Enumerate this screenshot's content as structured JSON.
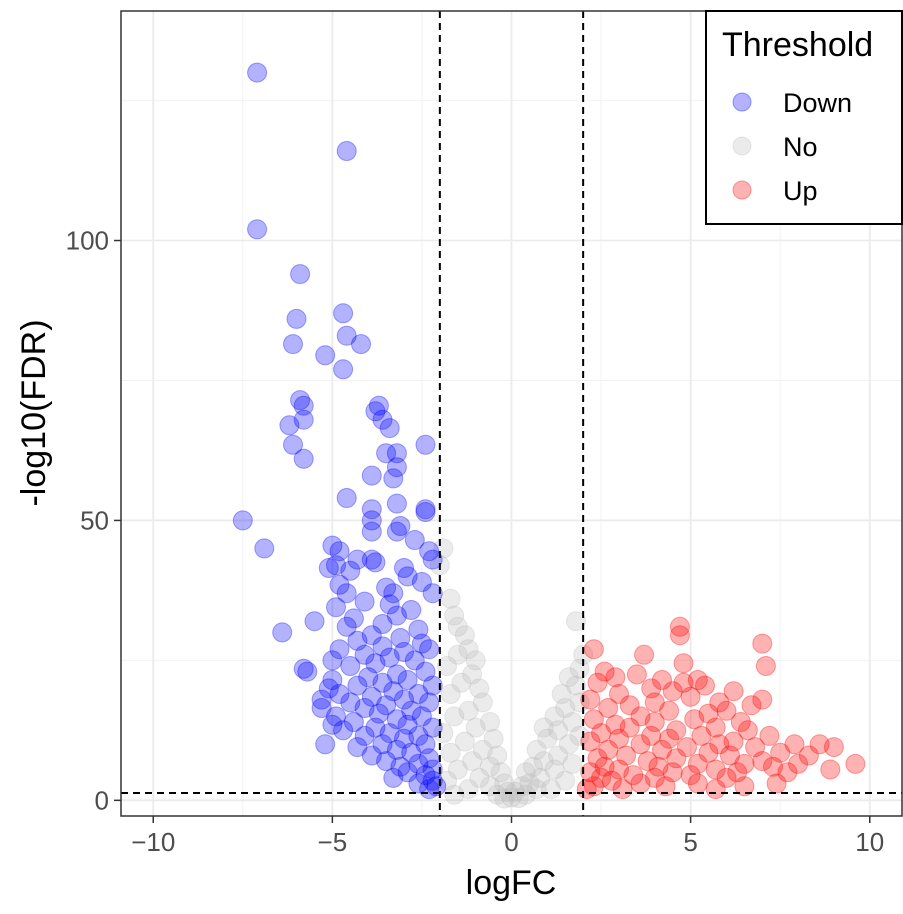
{
  "chart_data": {
    "type": "scatter",
    "title": "",
    "xlabel": "logFC",
    "ylabel": "-log10(FDR)",
    "xlim": [
      -10.9,
      10.9
    ],
    "ylim": [
      -2.8,
      141
    ],
    "x_ticks": [
      -10,
      -5,
      0,
      5,
      10
    ],
    "x_tick_labels": [
      "−10",
      "−5",
      "0",
      "5",
      "10"
    ],
    "y_ticks": [
      0,
      50,
      100
    ],
    "y_tick_labels": [
      "0",
      "50",
      "100"
    ],
    "thresholds": {
      "logFC_low": -2,
      "logFC_high": 2,
      "neg_log10_fdr": 1.3
    },
    "grid": true,
    "legend": {
      "title": "Threshold",
      "position": "top-right",
      "entries": [
        "Down",
        "No",
        "Up"
      ]
    },
    "colors": {
      "Down": "#0000ff",
      "No": "#bebebe",
      "Up": "#ff0000"
    },
    "series": [
      {
        "name": "Down",
        "points": [
          [
            -7.1,
            130
          ],
          [
            -4.6,
            116
          ],
          [
            -7.1,
            102
          ],
          [
            -5.9,
            94
          ],
          [
            -4.7,
            87
          ],
          [
            -6.0,
            86
          ],
          [
            -4.6,
            83
          ],
          [
            -6.1,
            81.5
          ],
          [
            -4.2,
            81.5
          ],
          [
            -5.2,
            79.5
          ],
          [
            -4.7,
            77
          ],
          [
            -5.9,
            71.5
          ],
          [
            -5.8,
            70.5
          ],
          [
            -3.7,
            70.5
          ],
          [
            -3.8,
            69.5
          ],
          [
            -5.8,
            68
          ],
          [
            -3.6,
            68
          ],
          [
            -6.2,
            67
          ],
          [
            -3.4,
            66.5
          ],
          [
            -6.1,
            63.5
          ],
          [
            -2.4,
            63.5
          ],
          [
            -5.8,
            61
          ],
          [
            -3.5,
            62
          ],
          [
            -3.2,
            62
          ],
          [
            -3.2,
            59.5
          ],
          [
            -3.9,
            58
          ],
          [
            -3.3,
            57.5
          ],
          [
            -4.6,
            54
          ],
          [
            -3.2,
            53
          ],
          [
            -3.9,
            52
          ],
          [
            -2.4,
            52
          ],
          [
            -2.4,
            51.5
          ],
          [
            -3.9,
            50
          ],
          [
            -7.5,
            50
          ],
          [
            -3.1,
            49
          ],
          [
            -3.2,
            48
          ],
          [
            -3.9,
            48
          ],
          [
            -2.7,
            46.5
          ],
          [
            -6.9,
            45
          ],
          [
            -5.0,
            45.5
          ],
          [
            -4.8,
            44.5
          ],
          [
            -2.3,
            44.5
          ],
          [
            -4.3,
            43
          ],
          [
            -3.9,
            43
          ],
          [
            -3.8,
            42.5
          ],
          [
            -2.2,
            43
          ],
          [
            -5.1,
            41.5
          ],
          [
            -4.9,
            42
          ],
          [
            -4.5,
            41
          ],
          [
            -3.0,
            41.5
          ],
          [
            -2.9,
            40
          ],
          [
            -2.5,
            39
          ],
          [
            -4.8,
            38.5
          ],
          [
            -3.5,
            38
          ],
          [
            -4.6,
            37
          ],
          [
            -3.3,
            37
          ],
          [
            -2.2,
            37
          ],
          [
            -4.1,
            35.5
          ],
          [
            -3.4,
            35
          ],
          [
            -4.9,
            34.5
          ],
          [
            -2.8,
            34
          ],
          [
            -3.2,
            33
          ],
          [
            -4.4,
            32.5
          ],
          [
            -5.5,
            32
          ],
          [
            -3.6,
            31.5
          ],
          [
            -4.6,
            31
          ],
          [
            -2.6,
            30.5
          ],
          [
            -6.4,
            30
          ],
          [
            -3.9,
            29.5
          ],
          [
            -3.1,
            29
          ],
          [
            -4.3,
            28.5
          ],
          [
            -2.5,
            28
          ],
          [
            -3.6,
            27.5
          ],
          [
            -4.8,
            27
          ],
          [
            -2.3,
            27
          ],
          [
            -3.0,
            26.5
          ],
          [
            -4.1,
            26
          ],
          [
            -3.4,
            25.5
          ],
          [
            -5.0,
            25
          ],
          [
            -2.7,
            25
          ],
          [
            -3.8,
            24.5
          ],
          [
            -4.5,
            24
          ],
          [
            -5.8,
            23.5
          ],
          [
            -5.7,
            23
          ],
          [
            -2.4,
            23
          ],
          [
            -3.2,
            22.5
          ],
          [
            -4.0,
            22
          ],
          [
            -5.0,
            21.5
          ],
          [
            -2.9,
            21.5
          ],
          [
            -3.6,
            21
          ],
          [
            -4.3,
            20.5
          ],
          [
            -2.2,
            20.5
          ],
          [
            -5.1,
            20
          ],
          [
            -3.3,
            19.5
          ],
          [
            -4.8,
            19
          ],
          [
            -2.6,
            19
          ],
          [
            -3.9,
            18.5
          ],
          [
            -5.3,
            18
          ],
          [
            -3.0,
            18
          ],
          [
            -4.5,
            17.5
          ],
          [
            -2.3,
            17.5
          ],
          [
            -3.5,
            17
          ],
          [
            -5.3,
            16.5
          ],
          [
            -4.1,
            16.5
          ],
          [
            -2.8,
            16
          ],
          [
            -3.7,
            15.5
          ],
          [
            -4.9,
            15
          ],
          [
            -2.5,
            15
          ],
          [
            -3.2,
            14.5
          ],
          [
            -4.4,
            14
          ],
          [
            -5.0,
            13.5
          ],
          [
            -2.9,
            13.5
          ],
          [
            -3.8,
            13
          ],
          [
            -2.2,
            13
          ],
          [
            -4.7,
            12.5
          ],
          [
            -3.4,
            12
          ],
          [
            -2.6,
            11.5
          ],
          [
            -4.1,
            11.5
          ],
          [
            -3.0,
            11
          ],
          [
            -5.2,
            10
          ],
          [
            -3.6,
            10
          ],
          [
            -2.4,
            10
          ],
          [
            -4.3,
            9.5
          ],
          [
            -3.2,
            9
          ],
          [
            -2.8,
            8.5
          ],
          [
            -3.9,
            8
          ],
          [
            -2.3,
            7.5
          ],
          [
            -3.5,
            7
          ],
          [
            -2.6,
            6.5
          ],
          [
            -3.1,
            6
          ],
          [
            -2.2,
            5.5
          ],
          [
            -2.9,
            5
          ],
          [
            -2.4,
            4.5
          ],
          [
            -3.3,
            4
          ],
          [
            -2.2,
            3.5
          ],
          [
            -2.6,
            3
          ],
          [
            -2.1,
            2.5
          ],
          [
            -2.3,
            2
          ]
        ]
      },
      {
        "name": "No",
        "points": [
          [
            -1.9,
            45
          ],
          [
            -2.0,
            42
          ],
          [
            -1.7,
            36
          ],
          [
            -1.6,
            33
          ],
          [
            -1.5,
            31
          ],
          [
            -1.3,
            29.5
          ],
          [
            -1.2,
            27
          ],
          [
            -1.0,
            25
          ],
          [
            -1.5,
            26
          ],
          [
            -1.8,
            24
          ],
          [
            -1.1,
            22.5
          ],
          [
            -0.9,
            20
          ],
          [
            -1.4,
            21
          ],
          [
            -1.7,
            19
          ],
          [
            -0.8,
            17.5
          ],
          [
            -1.2,
            16
          ],
          [
            -1.6,
            15
          ],
          [
            -0.6,
            14
          ],
          [
            -1.0,
            13
          ],
          [
            -1.9,
            12
          ],
          [
            -0.5,
            11
          ],
          [
            -1.3,
            10.5
          ],
          [
            -0.8,
            9
          ],
          [
            -1.7,
            8.5
          ],
          [
            -0.4,
            8
          ],
          [
            -1.1,
            7
          ],
          [
            -0.6,
            6
          ],
          [
            -1.5,
            5.5
          ],
          [
            -0.3,
            5
          ],
          [
            -0.9,
            4
          ],
          [
            -1.8,
            3.5
          ],
          [
            -0.2,
            3
          ],
          [
            -0.6,
            2.5
          ],
          [
            -1.2,
            2
          ],
          [
            -0.1,
            1.5
          ],
          [
            -0.4,
            1
          ],
          [
            -1.6,
            1
          ],
          [
            0.0,
            0.5
          ],
          [
            -0.2,
            0.3
          ],
          [
            0.2,
            0.4
          ],
          [
            0.4,
            1
          ],
          [
            0.1,
            1.5
          ],
          [
            0.7,
            2
          ],
          [
            0.3,
            2.5
          ],
          [
            1.1,
            2
          ],
          [
            0.5,
            3
          ],
          [
            1.5,
            3.5
          ],
          [
            0.8,
            4
          ],
          [
            0.4,
            5
          ],
          [
            1.2,
            5.5
          ],
          [
            0.6,
            6
          ],
          [
            1.7,
            6.5
          ],
          [
            0.9,
            7
          ],
          [
            1.3,
            8
          ],
          [
            0.7,
            9
          ],
          [
            1.6,
            10
          ],
          [
            1.0,
            11
          ],
          [
            1.9,
            11.5
          ],
          [
            1.3,
            12.5
          ],
          [
            0.9,
            13
          ],
          [
            1.7,
            14
          ],
          [
            1.2,
            15
          ],
          [
            1.5,
            16.5
          ],
          [
            1.9,
            17.5
          ],
          [
            1.4,
            19
          ],
          [
            1.8,
            20.5
          ],
          [
            1.6,
            22
          ],
          [
            1.9,
            23.5
          ],
          [
            2.0,
            26
          ],
          [
            1.8,
            32
          ]
        ]
      },
      {
        "name": "Up",
        "points": [
          [
            4.7,
            31
          ],
          [
            4.7,
            29.5
          ],
          [
            7.0,
            28
          ],
          [
            2.3,
            27
          ],
          [
            3.7,
            26
          ],
          [
            4.8,
            24.5
          ],
          [
            7.1,
            24
          ],
          [
            2.6,
            23
          ],
          [
            3.5,
            22.5
          ],
          [
            2.9,
            22
          ],
          [
            4.2,
            21.5
          ],
          [
            5.2,
            21.5
          ],
          [
            4.8,
            21
          ],
          [
            2.4,
            21
          ],
          [
            5.4,
            20.5
          ],
          [
            3.9,
            20
          ],
          [
            4.5,
            19.5
          ],
          [
            6.2,
            19.5
          ],
          [
            3.0,
            19
          ],
          [
            5.0,
            18.5
          ],
          [
            7.0,
            18
          ],
          [
            2.2,
            18
          ],
          [
            4.0,
            17.5
          ],
          [
            5.8,
            17.5
          ],
          [
            3.3,
            17
          ],
          [
            6.7,
            17
          ],
          [
            2.7,
            16.5
          ],
          [
            4.4,
            16
          ],
          [
            5.5,
            15.5
          ],
          [
            6.0,
            16
          ],
          [
            3.6,
            15
          ],
          [
            2.3,
            14.5
          ],
          [
            5.1,
            14.5
          ],
          [
            6.4,
            14
          ],
          [
            4.0,
            14
          ],
          [
            2.9,
            13.5
          ],
          [
            3.3,
            13
          ],
          [
            5.7,
            13
          ],
          [
            4.6,
            12.5
          ],
          [
            6.6,
            12.5
          ],
          [
            2.5,
            12
          ],
          [
            3.9,
            11.5
          ],
          [
            5.3,
            11.5
          ],
          [
            7.2,
            11.5
          ],
          [
            3.0,
            11
          ],
          [
            4.4,
            11
          ],
          [
            6.2,
            10.5
          ],
          [
            2.2,
            10.5
          ],
          [
            5.8,
            10
          ],
          [
            7.9,
            10
          ],
          [
            8.6,
            10
          ],
          [
            9.0,
            9.5
          ],
          [
            3.6,
            10
          ],
          [
            4.9,
            9.5
          ],
          [
            6.8,
            9.5
          ],
          [
            2.7,
            9
          ],
          [
            4.2,
            9
          ],
          [
            5.5,
            8.5
          ],
          [
            7.5,
            8.5
          ],
          [
            8.3,
            8
          ],
          [
            3.2,
            8
          ],
          [
            6.1,
            8
          ],
          [
            2.4,
            7.5
          ],
          [
            4.6,
            7.5
          ],
          [
            7.0,
            7
          ],
          [
            9.6,
            6.5
          ],
          [
            3.8,
            7
          ],
          [
            5.2,
            6.5
          ],
          [
            6.5,
            6.5
          ],
          [
            8.0,
            6.5
          ],
          [
            2.6,
            6
          ],
          [
            4.1,
            6
          ],
          [
            7.3,
            6
          ],
          [
            8.9,
            5.5
          ],
          [
            3.0,
            5.5
          ],
          [
            5.7,
            5.5
          ],
          [
            2.2,
            5
          ],
          [
            4.5,
            5
          ],
          [
            6.3,
            5
          ],
          [
            7.7,
            5
          ],
          [
            3.4,
            4.5
          ],
          [
            5.0,
            4.5
          ],
          [
            2.5,
            4
          ],
          [
            4.0,
            4
          ],
          [
            6.0,
            4
          ],
          [
            7.4,
            3
          ],
          [
            2.8,
            3.5
          ],
          [
            3.6,
            3
          ],
          [
            5.2,
            3
          ],
          [
            2.3,
            2.5
          ],
          [
            4.3,
            2.5
          ],
          [
            6.5,
            2.5
          ],
          [
            2.1,
            2
          ],
          [
            3.1,
            2
          ],
          [
            5.7,
            2
          ]
        ]
      }
    ]
  }
}
